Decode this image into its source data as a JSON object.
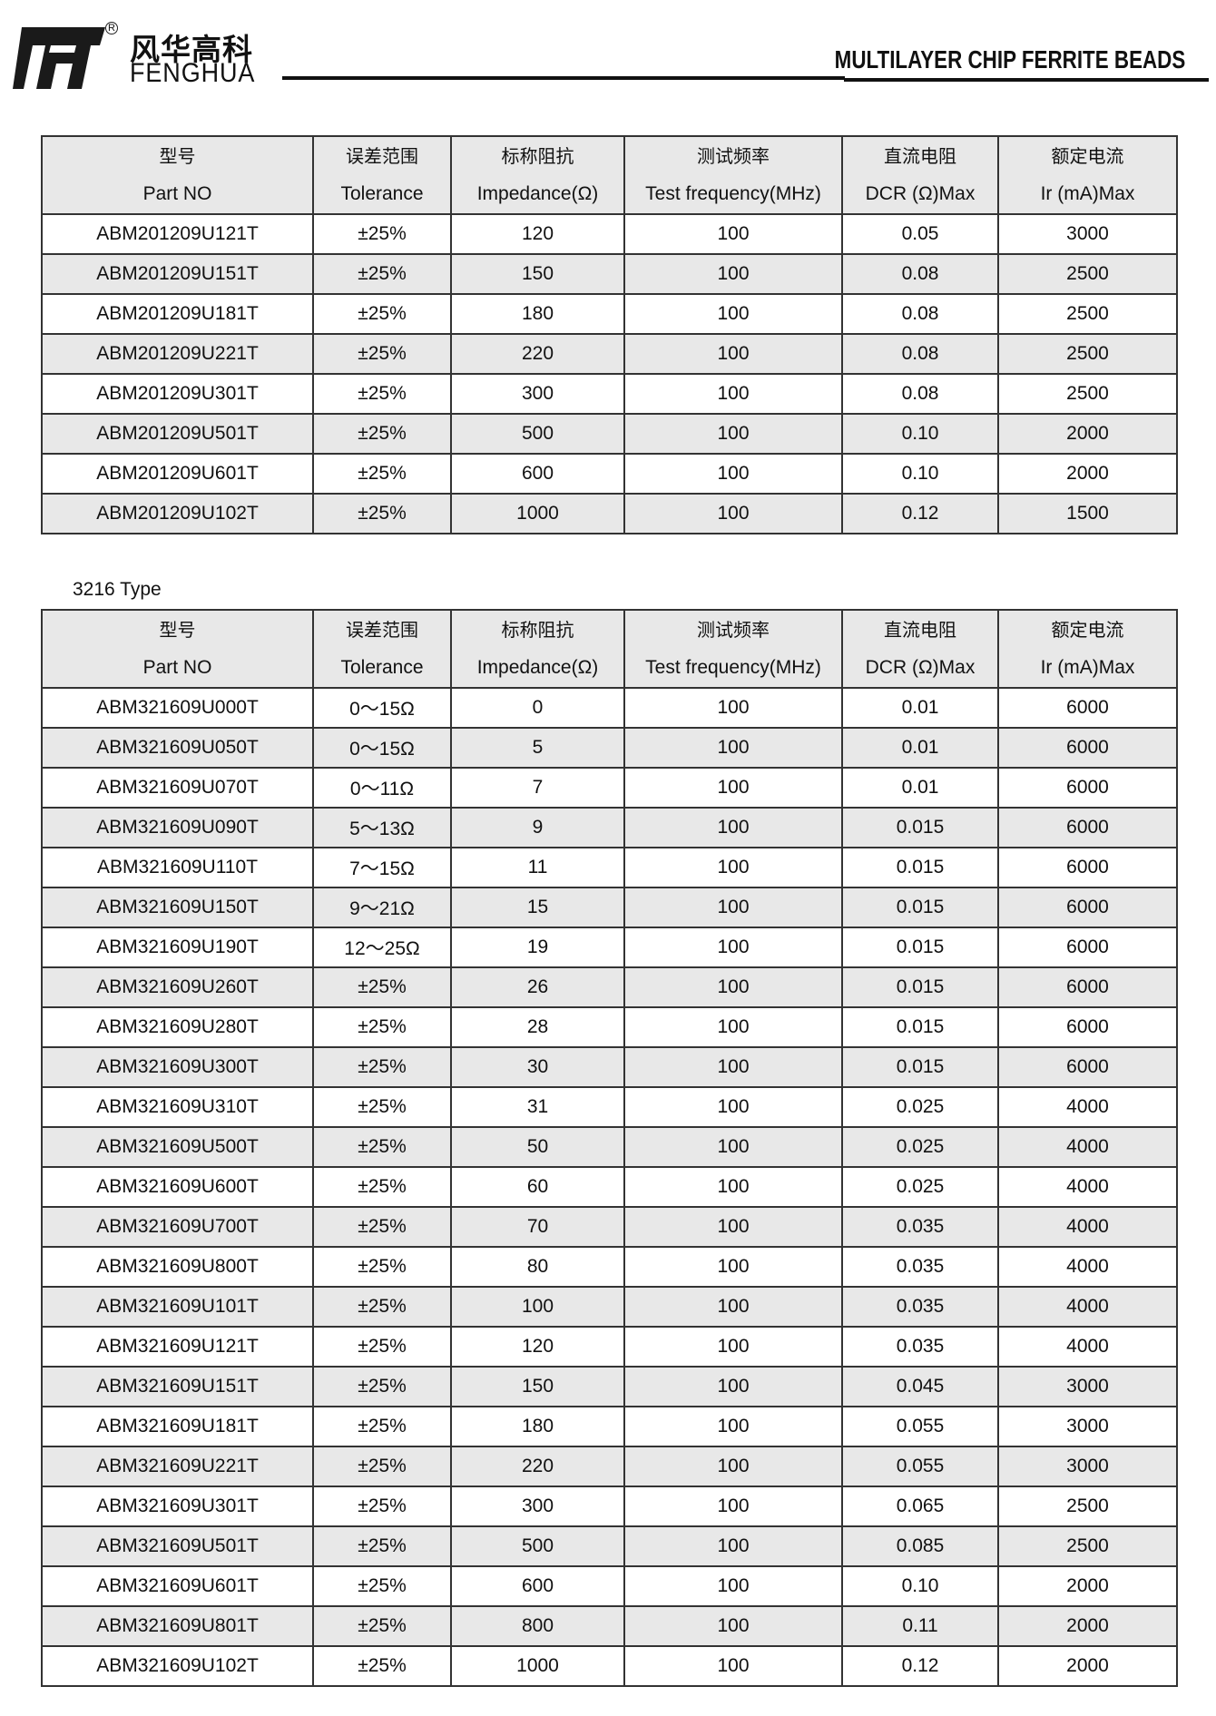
{
  "header": {
    "brand_cn": "风华高科",
    "brand_en": "FENGHUA",
    "registered_mark": "R",
    "doc_title": "MULTILAYER CHIP FERRITE BEADS"
  },
  "columns": [
    {
      "cn": "型号",
      "en": "Part NO"
    },
    {
      "cn": "误差范围",
      "en": "Tolerance"
    },
    {
      "cn": "标称阻抗",
      "en": "Impedance(Ω)"
    },
    {
      "cn": "测试频率",
      "en": "Test frequency(MHz)"
    },
    {
      "cn": "直流电阻",
      "en": "DCR (Ω)Max"
    },
    {
      "cn": "额定电流",
      "en": "Ir (mA)Max"
    }
  ],
  "table1": {
    "rows": [
      [
        "ABM201209U121T",
        "±25%",
        "120",
        "100",
        "0.05",
        "3000"
      ],
      [
        "ABM201209U151T",
        "±25%",
        "150",
        "100",
        "0.08",
        "2500"
      ],
      [
        "ABM201209U181T",
        "±25%",
        "180",
        "100",
        "0.08",
        "2500"
      ],
      [
        "ABM201209U221T",
        "±25%",
        "220",
        "100",
        "0.08",
        "2500"
      ],
      [
        "ABM201209U301T",
        "±25%",
        "300",
        "100",
        "0.08",
        "2500"
      ],
      [
        "ABM201209U501T",
        "±25%",
        "500",
        "100",
        "0.10",
        "2000"
      ],
      [
        "ABM201209U601T",
        "±25%",
        "600",
        "100",
        "0.10",
        "2000"
      ],
      [
        "ABM201209U102T",
        "±25%",
        "1000",
        "100",
        "0.12",
        "1500"
      ]
    ]
  },
  "table2": {
    "label": "3216 Type",
    "rows": [
      [
        "ABM321609U000T",
        "0～15Ω",
        "0",
        "100",
        "0.01",
        "6000"
      ],
      [
        "ABM321609U050T",
        "0～15Ω",
        "5",
        "100",
        "0.01",
        "6000"
      ],
      [
        "ABM321609U070T",
        "0～11Ω",
        "7",
        "100",
        "0.01",
        "6000"
      ],
      [
        "ABM321609U090T",
        "5～13Ω",
        "9",
        "100",
        "0.015",
        "6000"
      ],
      [
        "ABM321609U110T",
        "7～15Ω",
        "11",
        "100",
        "0.015",
        "6000"
      ],
      [
        "ABM321609U150T",
        "9～21Ω",
        "15",
        "100",
        "0.015",
        "6000"
      ],
      [
        "ABM321609U190T",
        "12～25Ω",
        "19",
        "100",
        "0.015",
        "6000"
      ],
      [
        "ABM321609U260T",
        "±25%",
        "26",
        "100",
        "0.015",
        "6000"
      ],
      [
        "ABM321609U280T",
        "±25%",
        "28",
        "100",
        "0.015",
        "6000"
      ],
      [
        "ABM321609U300T",
        "±25%",
        "30",
        "100",
        "0.015",
        "6000"
      ],
      [
        "ABM321609U310T",
        "±25%",
        "31",
        "100",
        "0.025",
        "4000"
      ],
      [
        "ABM321609U500T",
        "±25%",
        "50",
        "100",
        "0.025",
        "4000"
      ],
      [
        "ABM321609U600T",
        "±25%",
        "60",
        "100",
        "0.025",
        "4000"
      ],
      [
        "ABM321609U700T",
        "±25%",
        "70",
        "100",
        "0.035",
        "4000"
      ],
      [
        "ABM321609U800T",
        "±25%",
        "80",
        "100",
        "0.035",
        "4000"
      ],
      [
        "ABM321609U101T",
        "±25%",
        "100",
        "100",
        "0.035",
        "4000"
      ],
      [
        "ABM321609U121T",
        "±25%",
        "120",
        "100",
        "0.035",
        "4000"
      ],
      [
        "ABM321609U151T",
        "±25%",
        "150",
        "100",
        "0.045",
        "3000"
      ],
      [
        "ABM321609U181T",
        "±25%",
        "180",
        "100",
        "0.055",
        "3000"
      ],
      [
        "ABM321609U221T",
        "±25%",
        "220",
        "100",
        "0.055",
        "3000"
      ],
      [
        "ABM321609U301T",
        "±25%",
        "300",
        "100",
        "0.065",
        "2500"
      ],
      [
        "ABM321609U501T",
        "±25%",
        "500",
        "100",
        "0.085",
        "2500"
      ],
      [
        "ABM321609U601T",
        "±25%",
        "600",
        "100",
        "0.10",
        "2000"
      ],
      [
        "ABM321609U801T",
        "±25%",
        "800",
        "100",
        "0.11",
        "2000"
      ],
      [
        "ABM321609U102T",
        "±25%",
        "1000",
        "100",
        "0.12",
        "2000"
      ]
    ]
  }
}
